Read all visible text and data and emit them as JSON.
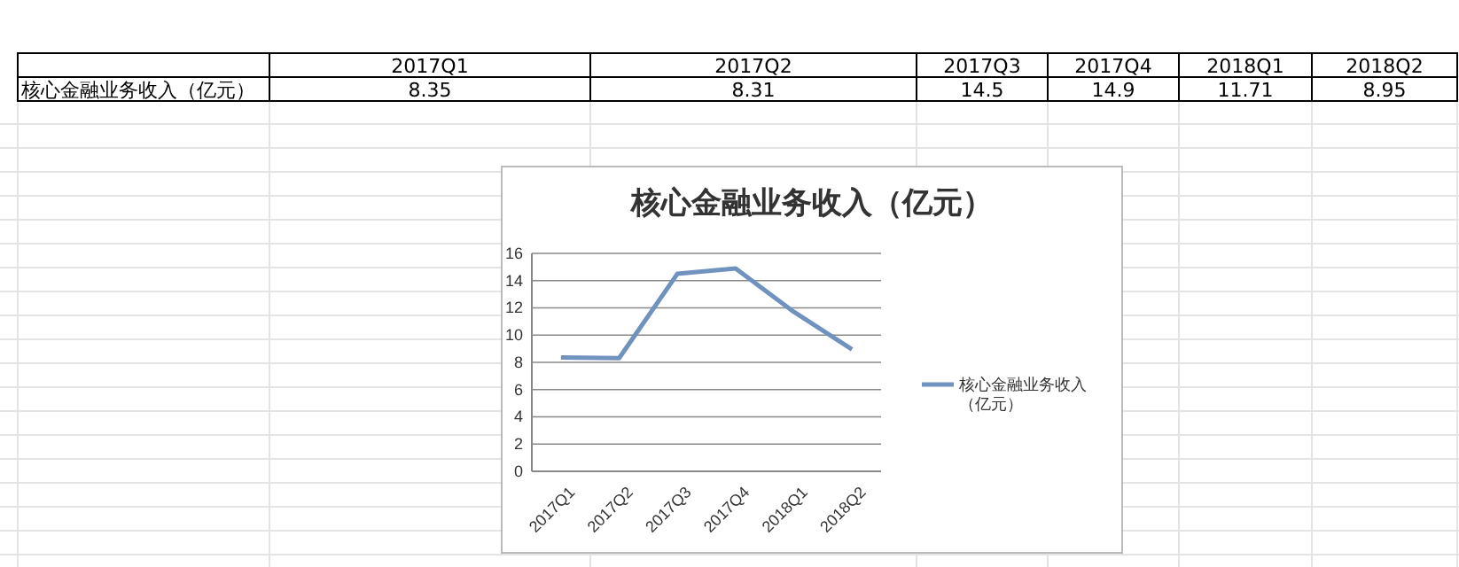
{
  "chart_data": [
    {
      "type": "other",
      "categories": [
        "2017Q1",
        "2017Q2",
        "2017Q3",
        "2017Q4",
        "2018Q1",
        "2018Q2"
      ],
      "series": [
        {
          "name": "核心金融业务收入（亿元）",
          "values": [
            8.35,
            8.31,
            14.5,
            14.9,
            11.71,
            8.95
          ]
        }
      ],
      "data_labels": true
    },
    {
      "type": "line",
      "title": "核心金融业务收入（亿元）",
      "categories": [
        "2017Q1",
        "2017Q2",
        "2017Q3",
        "2017Q4",
        "2018Q1",
        "2018Q2"
      ],
      "series": [
        {
          "name": "核心金融业务收入（亿元）",
          "color": "#7092be",
          "values": [
            8.35,
            8.31,
            14.5,
            14.9,
            11.71,
            8.95
          ]
        }
      ],
      "ylim": [
        0,
        16
      ],
      "yticks": [
        0,
        2,
        4,
        6,
        8,
        10,
        12,
        14,
        16
      ],
      "grid": "y",
      "legend": "right",
      "marker": "none",
      "line_style": "solid"
    }
  ]
}
